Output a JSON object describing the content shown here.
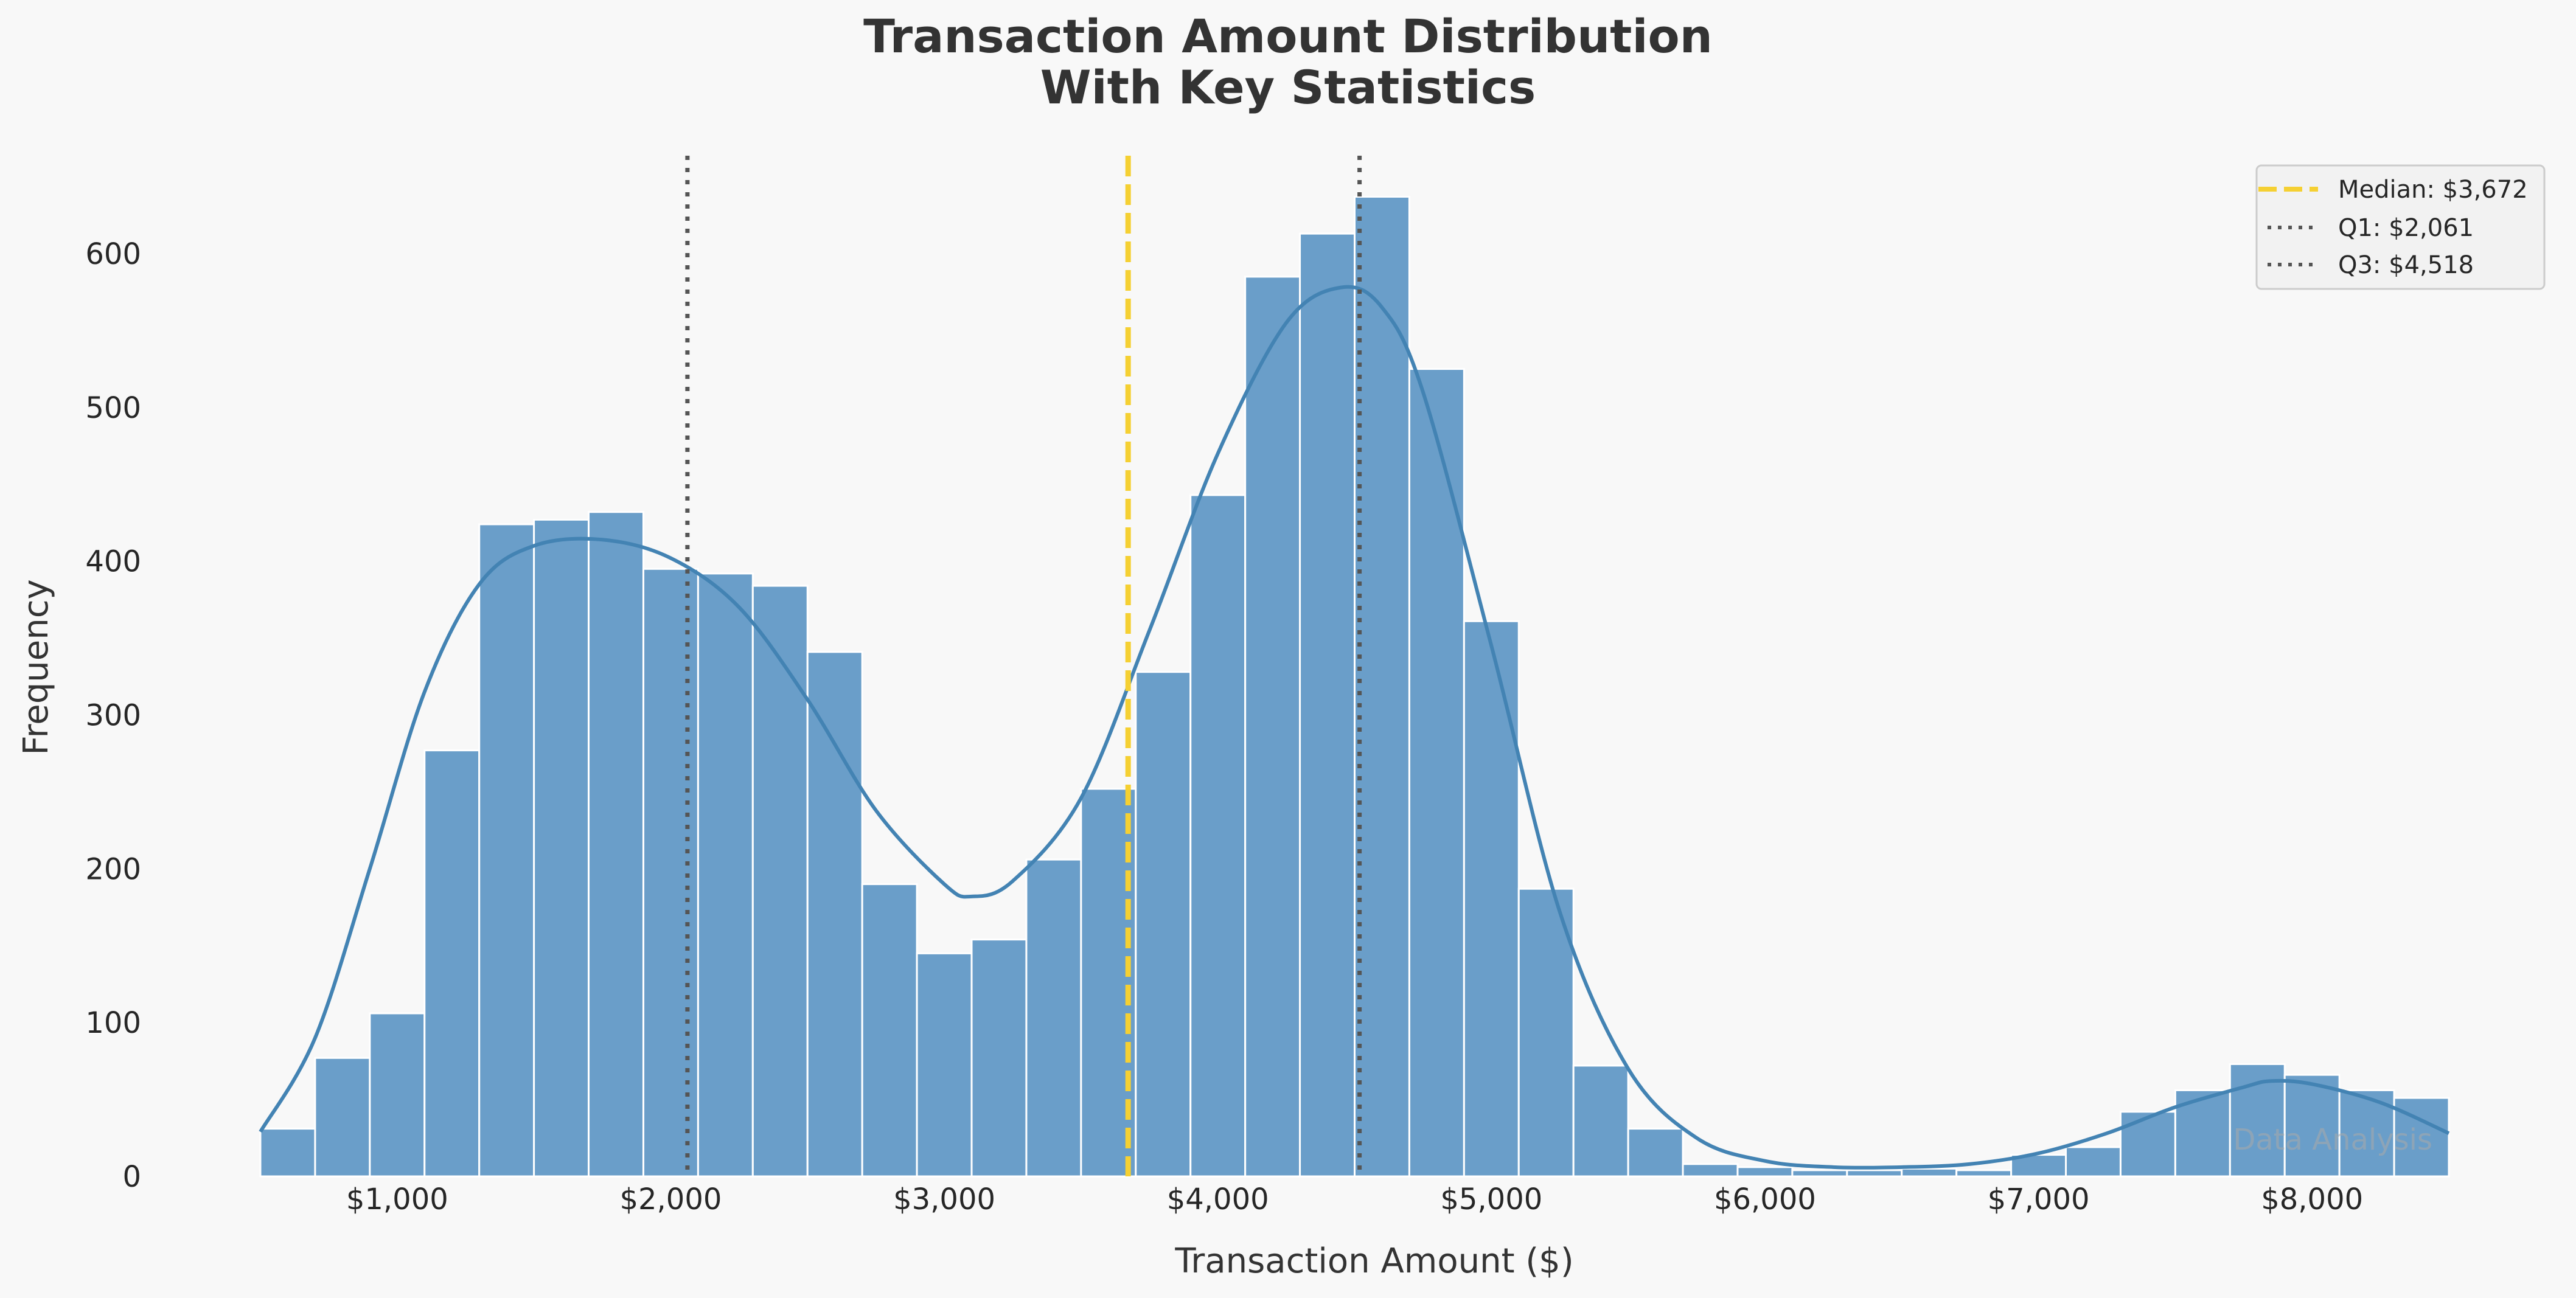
{
  "chart_data": {
    "type": "bar",
    "title_lines": [
      "Transaction Amount Distribution",
      "With Key Statistics"
    ],
    "xlabel": "Transaction Amount ($)",
    "ylabel": "Frequency",
    "xlim": [
      500,
      8500
    ],
    "ylim": [
      0,
      670
    ],
    "x_ticks": [
      1000,
      2000,
      3000,
      4000,
      5000,
      6000,
      7000,
      8000
    ],
    "x_tick_labels": [
      "$1,000",
      "$2,000",
      "$3,000",
      "$4,000",
      "$5,000",
      "$6,000",
      "$7,000",
      "$8,000"
    ],
    "y_ticks": [
      0,
      100,
      200,
      300,
      400,
      500,
      600
    ],
    "y_tick_labels": [
      "0",
      "100",
      "200",
      "300",
      "400",
      "500",
      "600"
    ],
    "bin_edges": [
      500,
      700,
      900,
      1100,
      1300,
      1500,
      1700,
      1900,
      2100,
      2300,
      2500,
      2700,
      2900,
      3100,
      3300,
      3500,
      3700,
      3900,
      4100,
      4300,
      4500,
      4700,
      4900,
      5100,
      5300,
      5500,
      5700,
      5900,
      6100,
      6300,
      6500,
      6700,
      6900,
      7100,
      7300,
      7500,
      7700,
      7900,
      8100,
      8300,
      8500
    ],
    "values": [
      31,
      77,
      106,
      277,
      424,
      427,
      432,
      395,
      392,
      384,
      341,
      190,
      145,
      154,
      206,
      252,
      328,
      443,
      585,
      613,
      637,
      525,
      361,
      187,
      72,
      31,
      8,
      6,
      4,
      4,
      5,
      4,
      14,
      19,
      42,
      56,
      73,
      66,
      56,
      51
    ],
    "kde": {
      "x": [
        500,
        700,
        900,
        1100,
        1300,
        1500,
        1750,
        2000,
        2250,
        2500,
        2750,
        3000,
        3100,
        3250,
        3500,
        3750,
        4000,
        4250,
        4450,
        4600,
        4750,
        5000,
        5250,
        5500,
        5750,
        6000,
        6250,
        6500,
        6750,
        7000,
        7250,
        7500,
        7750,
        7850,
        8000,
        8250,
        8500
      ],
      "y": [
        29,
        90,
        200,
        315,
        385,
        410,
        414,
        402,
        370,
        310,
        238,
        190,
        182,
        192,
        246,
        355,
        470,
        555,
        578,
        565,
        510,
        345,
        172,
        70,
        25,
        10,
        6,
        6,
        8,
        15,
        28,
        45,
        58,
        62,
        60,
        48,
        28
      ]
    },
    "median": 3672,
    "q1": 2061,
    "q3": 4518,
    "colors": {
      "bar": "#6a9ec9",
      "bar_edge": "#ffffff",
      "kde": "#4383b3",
      "median": "#f5d033",
      "quartile": "#555555",
      "background": "#f8f8f8"
    },
    "legend": {
      "position": "top-right",
      "entries": [
        {
          "label": "Median: $3,672",
          "style": "dashed",
          "color": "#f5d033"
        },
        {
          "label": "Q1: $2,061",
          "style": "dotted",
          "color": "#555555"
        },
        {
          "label": "Q3: $4,518",
          "style": "dotted",
          "color": "#555555"
        }
      ]
    },
    "watermark": "Data Analysis",
    "grid": false
  }
}
